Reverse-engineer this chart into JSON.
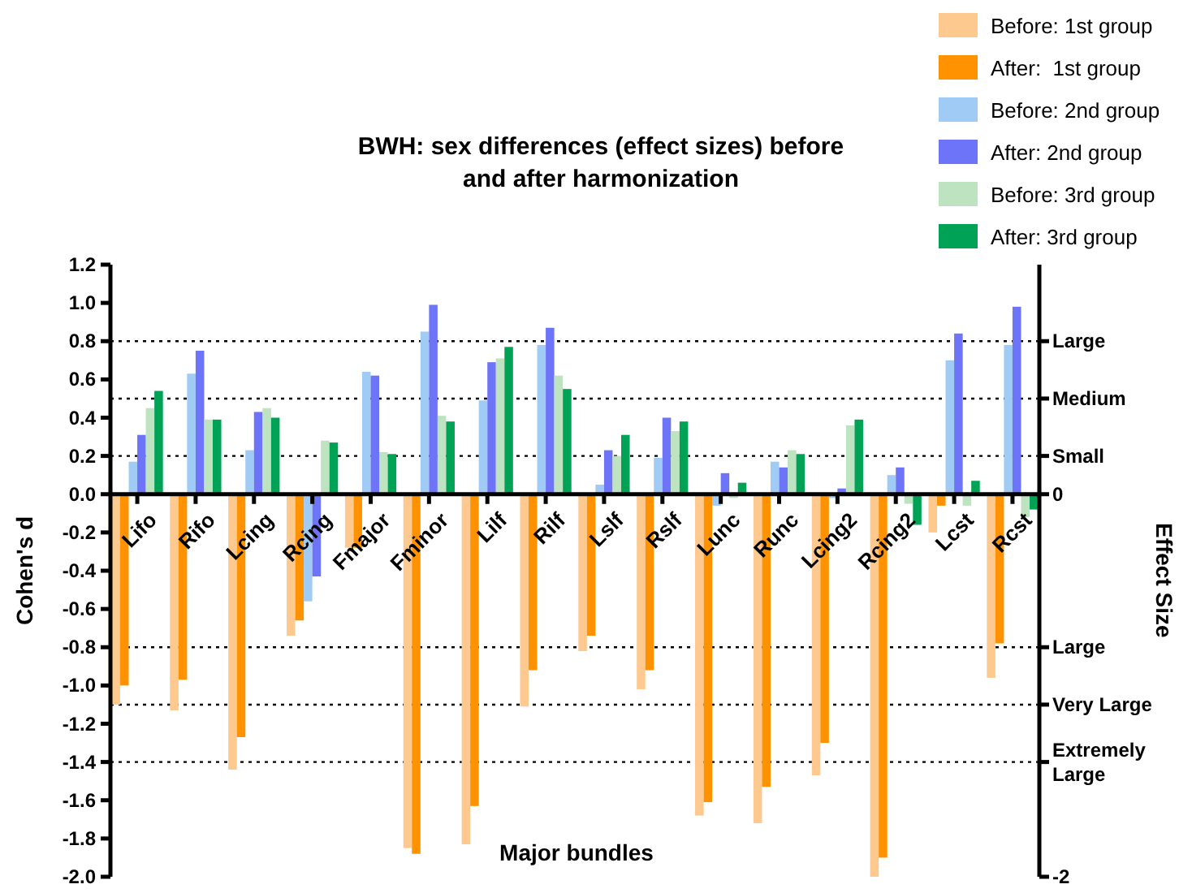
{
  "chart_data": {
    "type": "bar",
    "title": "BWH: sex differences (effect sizes) before and after harmonization",
    "xlabel": "Major bundles",
    "ylabel": "Cohen's d",
    "y2label": "Effect Size",
    "categories": [
      "Lifo",
      "Rifo",
      "Lcing",
      "Rcing",
      "Fmajor",
      "Fminor",
      "Lilf",
      "Rilf",
      "Lslf",
      "Rslf",
      "Lunc",
      "Runc",
      "Lcing2",
      "Rcing2",
      "Lcst",
      "Rcst"
    ],
    "series": [
      {
        "name": "Before: 1st group",
        "color": "#fdc98f",
        "values": [
          -1.1,
          -1.13,
          -1.44,
          -0.74,
          -0.28,
          -1.85,
          -1.83,
          -1.11,
          -0.82,
          -1.02,
          -1.68,
          -1.72,
          -1.47,
          -2.0,
          -0.2,
          -0.96
        ]
      },
      {
        "name": "After:  1st group",
        "color": "#fe9200",
        "values": [
          -1.0,
          -0.97,
          -1.27,
          -0.66,
          -0.28,
          -1.88,
          -1.63,
          -0.92,
          -0.74,
          -0.92,
          -1.61,
          -1.53,
          -1.3,
          -1.9,
          -0.06,
          -0.78
        ]
      },
      {
        "name": "Before: 2nd group",
        "color": "#a0cbf5",
        "values": [
          0.17,
          0.63,
          0.23,
          -0.56,
          0.64,
          0.85,
          0.49,
          0.78,
          0.05,
          0.19,
          -0.06,
          0.17,
          -0.02,
          0.1,
          0.7,
          0.78
        ]
      },
      {
        "name": "After: 2nd group",
        "color": "#6e74f7",
        "values": [
          0.31,
          0.75,
          0.43,
          -0.43,
          0.62,
          0.99,
          0.69,
          0.87,
          0.23,
          0.4,
          0.11,
          0.14,
          0.03,
          0.14,
          0.84,
          0.98
        ]
      },
      {
        "name": "Before: 3rd group",
        "color": "#bde3c0",
        "values": [
          0.45,
          0.39,
          0.45,
          0.28,
          0.22,
          0.41,
          0.71,
          0.62,
          0.2,
          0.33,
          -0.02,
          0.23,
          0.36,
          -0.05,
          -0.06,
          -0.12
        ]
      },
      {
        "name": "After: 3rd group",
        "color": "#00a356",
        "values": [
          0.54,
          0.39,
          0.4,
          0.27,
          0.21,
          0.38,
          0.77,
          0.55,
          0.31,
          0.38,
          0.06,
          0.21,
          0.39,
          -0.16,
          0.07,
          -0.08
        ]
      }
    ],
    "ylim": [
      -2,
      1.2
    ],
    "yticks": [
      {
        "value": -2,
        "label": "-2.0"
      },
      {
        "value": -1.8,
        "label": "-1.8"
      },
      {
        "value": -1.6,
        "label": "-1.6"
      },
      {
        "value": -1.4,
        "label": "-1.4"
      },
      {
        "value": -1.2,
        "label": "-1.2"
      },
      {
        "value": -1,
        "label": "-1.0"
      },
      {
        "value": -0.8,
        "label": "-0.8"
      },
      {
        "value": -0.6,
        "label": "-0.6"
      },
      {
        "value": -0.4,
        "label": "-0.4"
      },
      {
        "value": -0.2,
        "label": "-0.2"
      },
      {
        "value": 0,
        "label": "0.0"
      },
      {
        "value": 0.2,
        "label": "0.2"
      },
      {
        "value": 0.4,
        "label": "0.4"
      },
      {
        "value": 0.6,
        "label": "0.6"
      },
      {
        "value": 0.8,
        "label": "0.8"
      },
      {
        "value": 1,
        "label": "1.0"
      },
      {
        "value": 1.2,
        "label": "1.2"
      }
    ],
    "y2lim": [
      -2,
      1.2
    ],
    "y2ticks": [
      -2,
      {
        "value": -1.4,
        "label": "Extremely Large"
      },
      {
        "value": -1.1,
        "label": "Very Large"
      },
      {
        "value": -0.8,
        "label": "Large"
      },
      0,
      {
        "value": 0.2,
        "label": "Small"
      },
      {
        "value": 0.5,
        "label": "Medium"
      },
      {
        "value": 0.8,
        "label": "Large"
      }
    ],
    "ref_lines": [
      {
        "axis": "y",
        "value": 0.8,
        "line_style": "dotted"
      },
      {
        "axis": "y",
        "value": 0.5,
        "line_style": "dotted"
      },
      {
        "axis": "y",
        "value": 0.2,
        "line_style": "dotted"
      },
      {
        "axis": "y",
        "value": -0.8,
        "line_style": "dotted"
      },
      {
        "axis": "y",
        "value": -1.1,
        "line_style": "dotted"
      },
      {
        "axis": "y",
        "value": -1.4,
        "line_style": "dotted"
      }
    ],
    "grid": false,
    "legend": "top right"
  }
}
